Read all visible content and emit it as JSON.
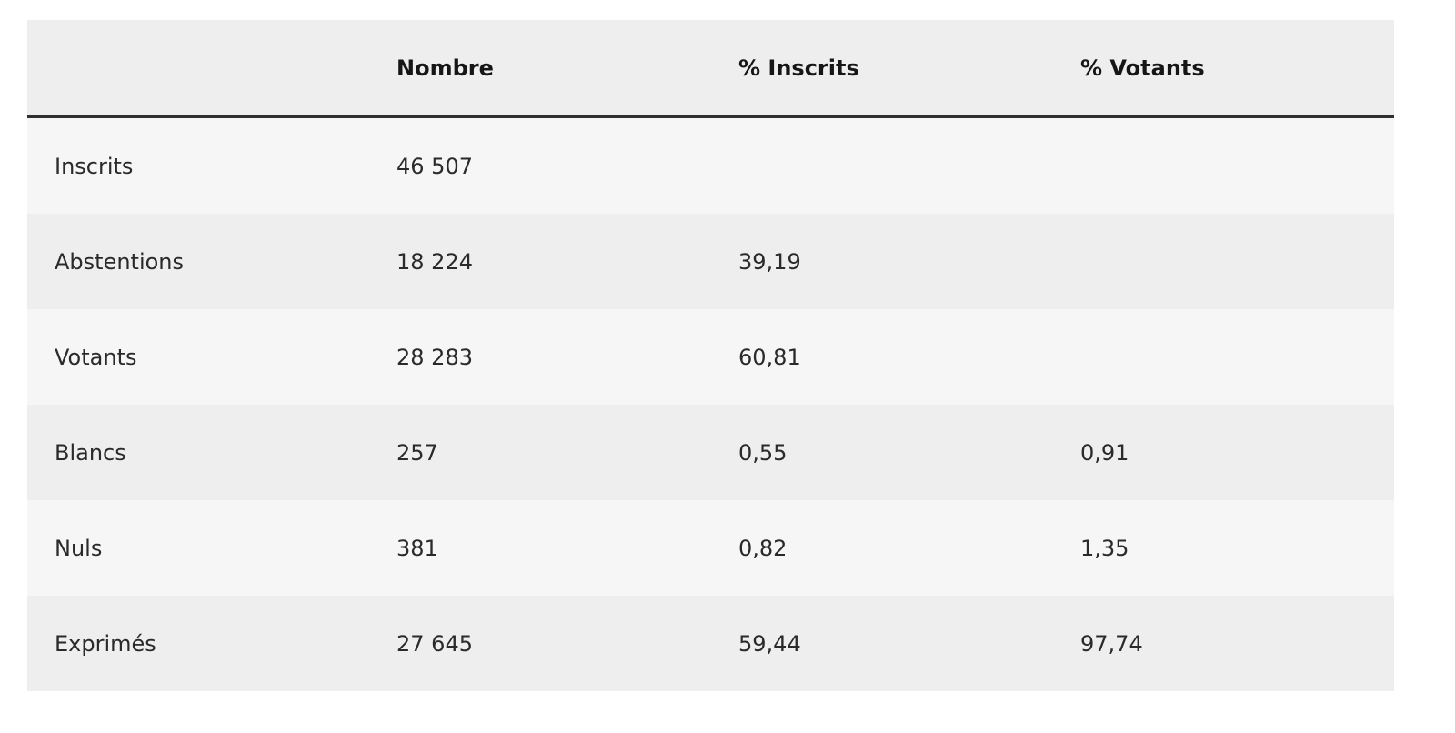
{
  "table": {
    "headers": [
      "Nombre",
      "% Inscrits",
      "% Votants"
    ],
    "rows": [
      [
        "Inscrits",
        "46 507"
      ],
      [
        "Abstentions",
        "18 224",
        "39,19"
      ],
      [
        "Votants",
        "28 283",
        "60,81"
      ],
      [
        "Blancs",
        "257",
        "0,55",
        "0,91"
      ],
      [
        "Nuls",
        "381",
        "0,82",
        "1,35"
      ],
      [
        "Exprimés",
        "27 645",
        "59,44",
        "97,74"
      ]
    ]
  }
}
